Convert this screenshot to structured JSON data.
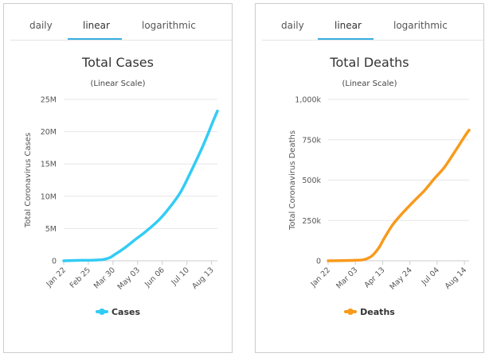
{
  "tabs": [
    "daily",
    "linear",
    "logarithmic"
  ],
  "active_tab": "linear",
  "tab_color": "#3ab0e2",
  "chart_data": [
    {
      "type": "line",
      "title": "Total Cases",
      "subtitle": "(Linear Scale)",
      "ylabel": "Total Coronavirus Cases",
      "xlabel": "",
      "color": "#33ccf5",
      "series": [
        {
          "name": "Cases",
          "x": [
            "2020-01-22",
            "2020-02-15",
            "2020-03-01",
            "2020-03-15",
            "2020-03-25",
            "2020-04-01",
            "2020-04-15",
            "2020-05-01",
            "2020-05-15",
            "2020-06-01",
            "2020-06-15",
            "2020-07-01",
            "2020-07-15",
            "2020-08-01",
            "2020-08-15",
            "2020-08-21"
          ],
          "values": [
            0.0006,
            0.07,
            0.09,
            0.17,
            0.47,
            0.93,
            2.0,
            3.4,
            4.6,
            6.3,
            8.1,
            10.6,
            13.7,
            17.8,
            21.6,
            23.2
          ]
        }
      ],
      "value_unit": "millions",
      "yticks": [
        "0",
        "5M",
        "10M",
        "15M",
        "20M",
        "25M"
      ],
      "ytick_values": [
        0,
        5,
        10,
        15,
        20,
        25
      ],
      "ylim": [
        0,
        25
      ],
      "xlim": [
        "2020-01-22",
        "2020-08-21"
      ],
      "xticks": [
        "Jan 22",
        "Feb 25",
        "Mar 30",
        "May 03",
        "Jun 06",
        "Jul 10",
        "Aug 13"
      ],
      "xtick_dates": [
        "2020-01-22",
        "2020-02-25",
        "2020-03-30",
        "2020-05-03",
        "2020-06-06",
        "2020-07-10",
        "2020-08-13"
      ],
      "grid": true,
      "legend": "bottom-center"
    },
    {
      "type": "line",
      "title": "Total Deaths",
      "subtitle": "(Linear Scale)",
      "ylabel": "Total Coronavirus Deaths",
      "xlabel": "",
      "color": "#f89a1c",
      "series": [
        {
          "name": "Deaths",
          "x": [
            "2020-01-22",
            "2020-02-15",
            "2020-03-01",
            "2020-03-15",
            "2020-03-25",
            "2020-04-01",
            "2020-04-08",
            "2020-04-15",
            "2020-04-25",
            "2020-05-01",
            "2020-05-15",
            "2020-06-01",
            "2020-06-15",
            "2020-07-01",
            "2020-07-15",
            "2020-08-01",
            "2020-08-15",
            "2020-08-21"
          ],
          "values": [
            0.02,
            1.7,
            3,
            6.5,
            22,
            47,
            85,
            137,
            205,
            239,
            305,
            378,
            436,
            515,
            580,
            685,
            775,
            810
          ],
          "value_unit": "thousands"
        }
      ],
      "yticks": [
        "0",
        "250k",
        "500k",
        "750k",
        "1,000k"
      ],
      "ytick_values": [
        0,
        250,
        500,
        750,
        1000
      ],
      "ylim": [
        0,
        1000
      ],
      "xlim": [
        "2020-01-22",
        "2020-08-21"
      ],
      "xticks": [
        "Jan 22",
        "Mar 03",
        "Apr 13",
        "May 24",
        "Jul 04",
        "Aug 14"
      ],
      "xtick_dates": [
        "2020-01-22",
        "2020-03-03",
        "2020-04-13",
        "2020-05-24",
        "2020-07-04",
        "2020-08-14"
      ],
      "grid": true,
      "legend": "bottom-center"
    }
  ]
}
